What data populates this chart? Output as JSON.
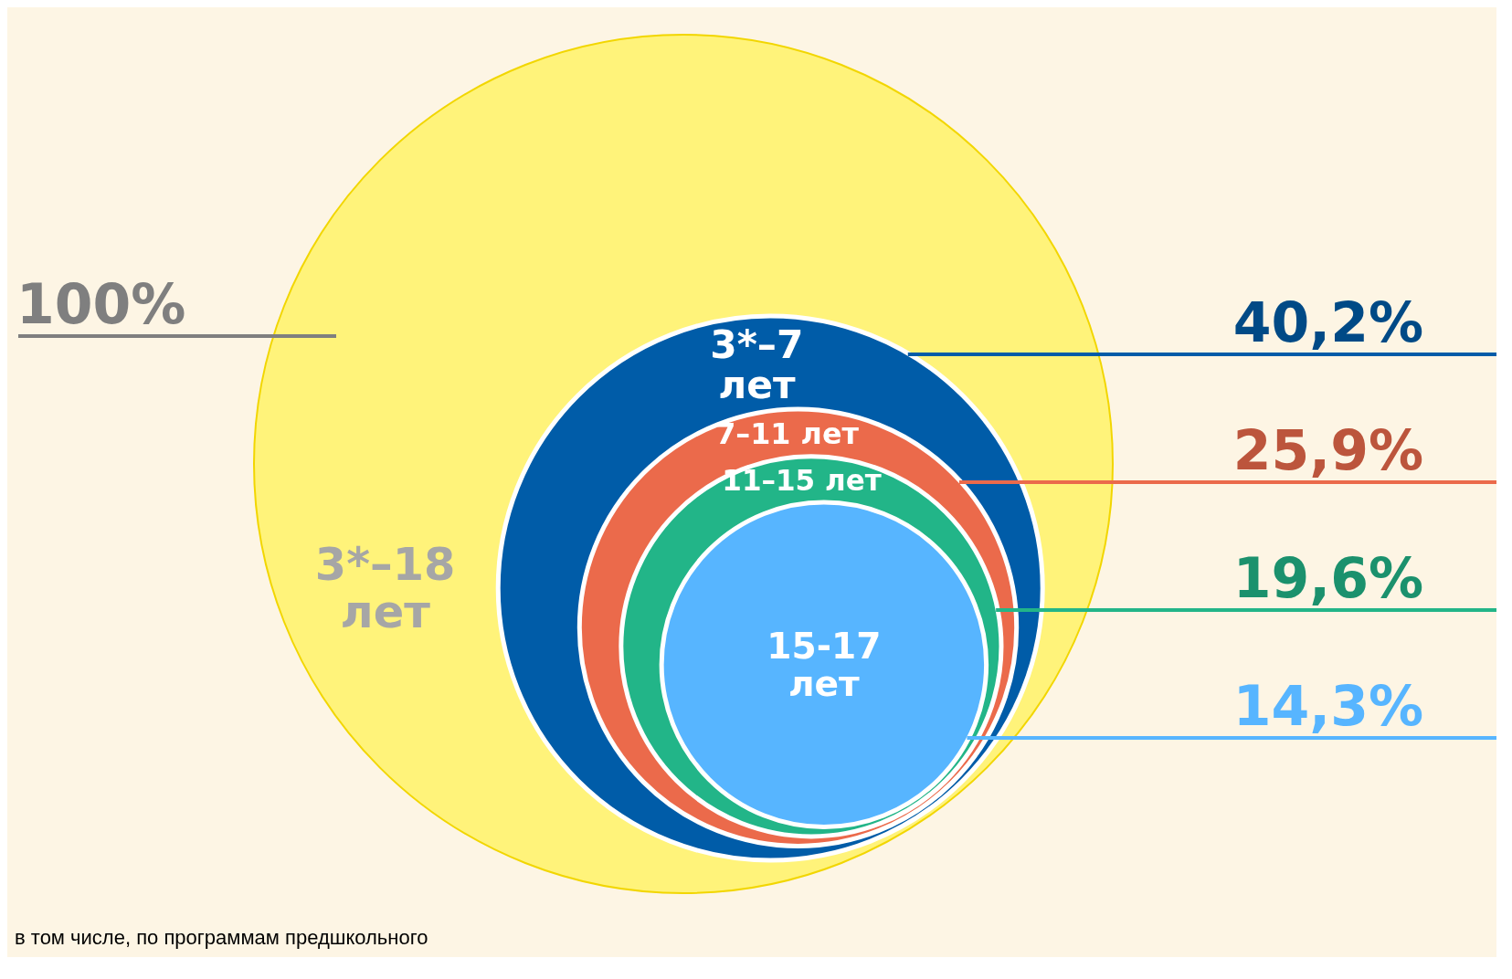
{
  "chart_data": {
    "type": "other",
    "categories": [
      "3*–18 лет",
      "3*–7 лет",
      "7–11 лет",
      "11–15 лет",
      "15-17 лет"
    ],
    "values": [
      100,
      40.2,
      25.9,
      19.6,
      14.3
    ],
    "value_labels": [
      "100%",
      "40,2%",
      "25,9%",
      "19,6%",
      "14,3%"
    ],
    "colors": [
      "#fff37a",
      "#005ca8",
      "#eb6a4b",
      "#22b588",
      "#57b5ff"
    ],
    "data_labels": true,
    "annotations": [
      "в том числе, по программам предшкольного"
    ]
  }
}
